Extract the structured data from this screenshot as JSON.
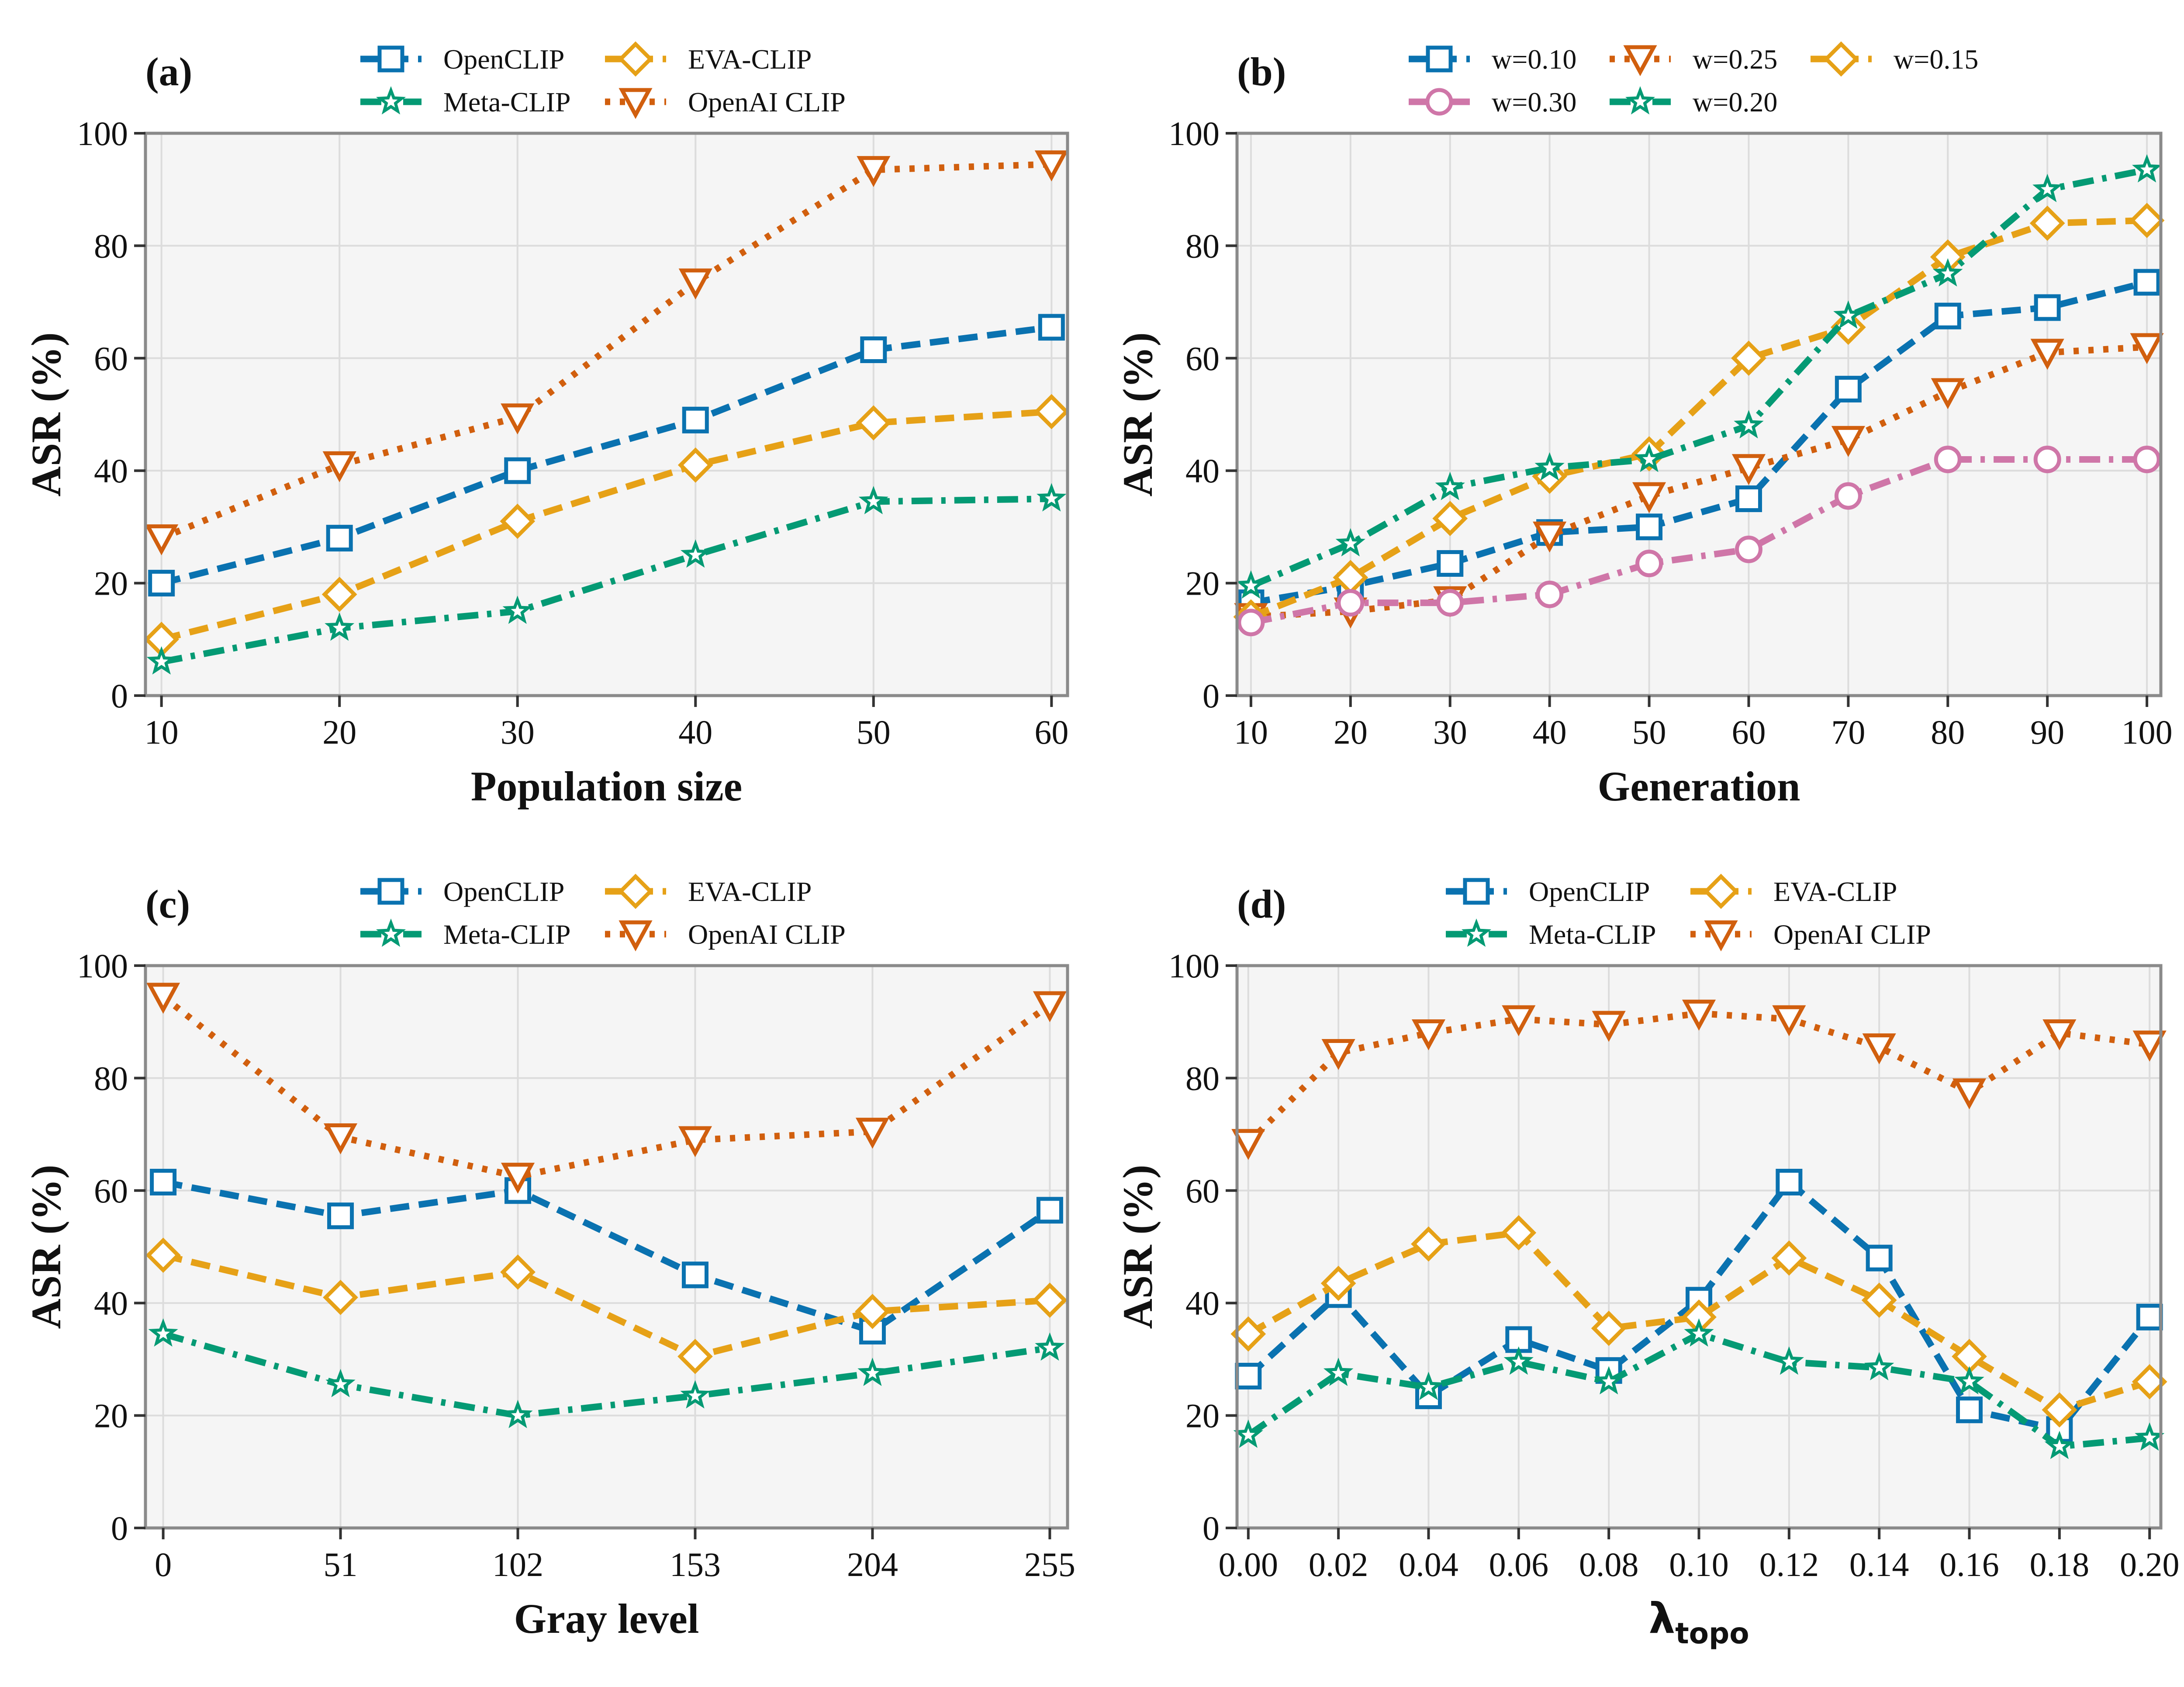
{
  "colors": {
    "blue": "#0a72b0",
    "orange": "#e6a117",
    "green": "#049a74",
    "vermillion": "#d15f0e",
    "pink": "#cf76a8",
    "plot_bg": "#f5f5f5",
    "grid": "#dcdcdc",
    "spine": "#8a8a8a"
  },
  "chart_data": [
    {
      "type": "line",
      "panel_label": "(a)",
      "xlabel": "Population size",
      "ylabel": "ASR (%)",
      "x": [
        10,
        20,
        30,
        40,
        50,
        60
      ],
      "x_tick_labels": [
        "10",
        "20",
        "30",
        "40",
        "50",
        "60"
      ],
      "xlim": [
        9.1,
        60.9
      ],
      "ylim": [
        0,
        100
      ],
      "y_ticks": [
        0,
        20,
        40,
        60,
        80,
        100
      ],
      "legend_position": "top-center",
      "legend_columns": 2,
      "series": [
        {
          "name": "OpenCLIP",
          "color": "blue",
          "marker": "square",
          "dash": "dashed",
          "values": [
            20,
            28,
            40,
            49,
            61.5,
            65.5
          ]
        },
        {
          "name": "EVA-CLIP",
          "color": "orange",
          "marker": "diamond",
          "dash": "dashed",
          "values": [
            10,
            18,
            31,
            41,
            48.5,
            50.5
          ]
        },
        {
          "name": "Meta-CLIP",
          "color": "green",
          "marker": "star",
          "dash": "dashdot",
          "values": [
            6,
            12,
            15,
            25,
            34.5,
            35
          ]
        },
        {
          "name": "OpenAI CLIP",
          "color": "vermillion",
          "marker": "triangle-down",
          "dash": "dotted",
          "values": [
            28,
            41,
            49.5,
            73.5,
            93.5,
            94.5
          ]
        }
      ]
    },
    {
      "type": "line",
      "panel_label": "(b)",
      "xlabel": "Generation",
      "ylabel": "ASR (%)",
      "x": [
        10,
        20,
        30,
        40,
        50,
        60,
        70,
        80,
        90,
        100
      ],
      "x_tick_labels": [
        "10",
        "20",
        "30",
        "40",
        "50",
        "60",
        "70",
        "80",
        "90",
        "100"
      ],
      "xlim": [
        8.6,
        101.4
      ],
      "ylim": [
        0,
        100
      ],
      "y_ticks": [
        0,
        20,
        40,
        60,
        80,
        100
      ],
      "legend_position": "top-center",
      "legend_columns": 3,
      "series": [
        {
          "name": "w=0.10",
          "color": "blue",
          "marker": "square",
          "dash": "dashed",
          "values": [
            16.5,
            19.5,
            23.5,
            29,
            30,
            35,
            54.5,
            67.5,
            69,
            73.5
          ]
        },
        {
          "name": "w=0.25",
          "color": "vermillion",
          "marker": "triangle-down",
          "dash": "dotted",
          "values": [
            14,
            15,
            17,
            28.5,
            35.5,
            40.5,
            45.5,
            54,
            61,
            62
          ]
        },
        {
          "name": "w=0.15",
          "color": "orange",
          "marker": "diamond",
          "dash": "dashed",
          "values": [
            14,
            21,
            31.5,
            39,
            43,
            60,
            65.5,
            78,
            84,
            84.5
          ]
        },
        {
          "name": "w=0.30",
          "color": "pink",
          "marker": "circle",
          "dash": "dashdot",
          "values": [
            13,
            16.5,
            16.5,
            18,
            23.5,
            26,
            35.5,
            42,
            42,
            42
          ]
        },
        {
          "name": "w=0.20",
          "color": "green",
          "marker": "star",
          "dash": "dashdot",
          "values": [
            19.5,
            27,
            37,
            40.5,
            42,
            48,
            67.5,
            75,
            90,
            93.5
          ]
        }
      ]
    },
    {
      "type": "line",
      "panel_label": "(c)",
      "xlabel": "Gray level",
      "ylabel": "ASR (%)",
      "x": [
        0,
        51,
        102,
        153,
        204,
        255
      ],
      "x_tick_labels": [
        "0",
        "51",
        "102",
        "153",
        "204",
        "255"
      ],
      "xlim": [
        -5.1,
        260.1
      ],
      "ylim": [
        0,
        100
      ],
      "y_ticks": [
        0,
        20,
        40,
        60,
        80,
        100
      ],
      "legend_position": "top-center",
      "legend_columns": 2,
      "series": [
        {
          "name": "OpenCLIP",
          "color": "blue",
          "marker": "square",
          "dash": "dashed",
          "values": [
            61.5,
            55.5,
            60,
            45,
            35,
            56.5
          ]
        },
        {
          "name": "EVA-CLIP",
          "color": "orange",
          "marker": "diamond",
          "dash": "dashed",
          "values": [
            48.5,
            41,
            45.5,
            30.5,
            38.5,
            40.5
          ]
        },
        {
          "name": "Meta-CLIP",
          "color": "green",
          "marker": "star",
          "dash": "dashdot",
          "values": [
            34.5,
            25.5,
            20,
            23.5,
            27.5,
            32
          ]
        },
        {
          "name": "OpenAI CLIP",
          "color": "vermillion",
          "marker": "triangle-down",
          "dash": "dotted",
          "values": [
            94.5,
            69.5,
            62.5,
            69,
            70.5,
            93
          ]
        }
      ]
    },
    {
      "type": "line",
      "panel_label": "(d)",
      "xlabel": "λ",
      "xlabel_subscript": "topo",
      "ylabel": "ASR (%)",
      "x": [
        0.0,
        0.02,
        0.04,
        0.06,
        0.08,
        0.1,
        0.12,
        0.14,
        0.16,
        0.18,
        0.2
      ],
      "x_tick_labels": [
        "0.00",
        "0.02",
        "0.04",
        "0.06",
        "0.08",
        "0.10",
        "0.12",
        "0.14",
        "0.16",
        "0.18",
        "0.20"
      ],
      "xlim": [
        -0.0025,
        0.2025
      ],
      "ylim": [
        0,
        100
      ],
      "y_ticks": [
        0,
        20,
        40,
        60,
        80,
        100
      ],
      "legend_position": "top-center",
      "legend_columns": 2,
      "series": [
        {
          "name": "OpenCLIP",
          "color": "blue",
          "marker": "square",
          "dash": "dashed",
          "values": [
            27,
            41.5,
            23.5,
            33.5,
            28,
            40.5,
            61.5,
            48,
            21,
            17.5,
            37.5
          ]
        },
        {
          "name": "EVA-CLIP",
          "color": "orange",
          "marker": "diamond",
          "dash": "dashed",
          "values": [
            34.5,
            43.5,
            50.5,
            52.5,
            35.5,
            37.5,
            48,
            40.5,
            30.5,
            21,
            26
          ]
        },
        {
          "name": "Meta-CLIP",
          "color": "green",
          "marker": "star",
          "dash": "dashdot",
          "values": [
            16.5,
            27.5,
            25,
            29.5,
            26,
            34.5,
            29.5,
            28.5,
            26,
            14.5,
            16
          ]
        },
        {
          "name": "OpenAI CLIP",
          "color": "vermillion",
          "marker": "triangle-down",
          "dash": "dotted",
          "values": [
            68.5,
            84.5,
            88,
            90.5,
            89.5,
            91.5,
            90.5,
            85.5,
            77.5,
            88,
            86
          ]
        }
      ]
    }
  ]
}
